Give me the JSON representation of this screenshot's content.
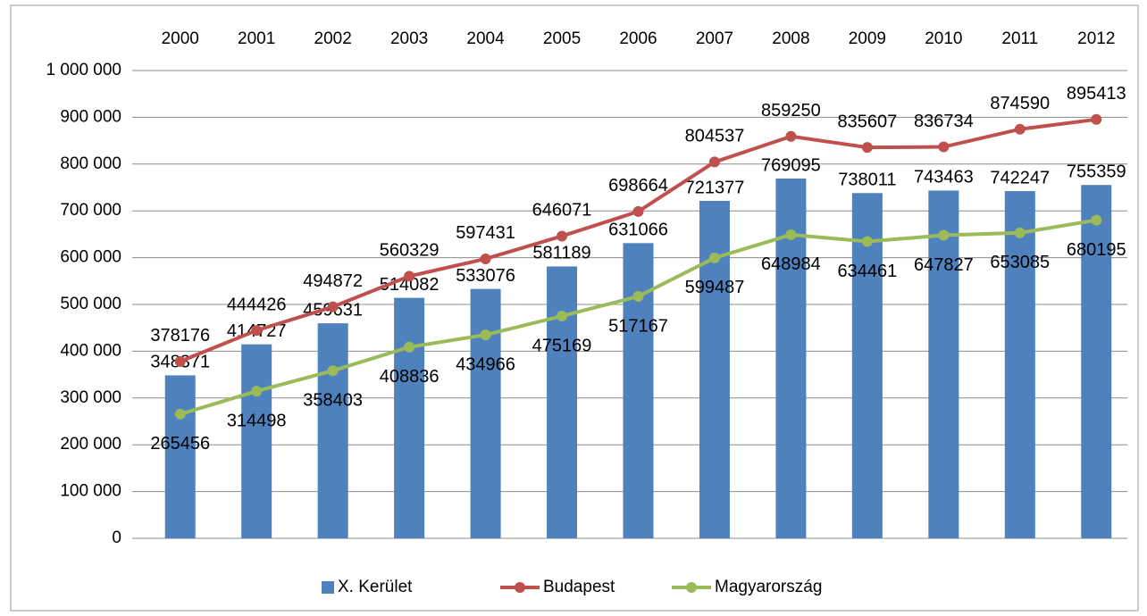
{
  "chart_data": {
    "type": "bar-line",
    "categories": [
      "2000",
      "2001",
      "2002",
      "2003",
      "2004",
      "2005",
      "2006",
      "2007",
      "2008",
      "2009",
      "2010",
      "2011",
      "2012"
    ],
    "series": [
      {
        "name": "X. Kerület",
        "type": "bar",
        "color": "#4f81bd",
        "values": [
          348371,
          414727,
          459631,
          514082,
          533076,
          581189,
          631066,
          721377,
          769095,
          738011,
          743463,
          742247,
          755359
        ]
      },
      {
        "name": "Budapest",
        "type": "line",
        "color": "#c0504d",
        "values": [
          378176,
          444426,
          494872,
          560329,
          597431,
          646071,
          698664,
          804537,
          859250,
          835607,
          836734,
          874590,
          895413
        ]
      },
      {
        "name": "Magyarország",
        "type": "line",
        "color": "#9bbb59",
        "values": [
          265456,
          314498,
          358403,
          408836,
          434966,
          475169,
          517167,
          599487,
          648984,
          634461,
          647827,
          653085,
          680195
        ]
      }
    ],
    "ylim": [
      0,
      1000000
    ],
    "yticks": [
      0,
      {
        "value": 100000,
        "label": "100 000"
      },
      {
        "value": 200000,
        "label": "200 000"
      },
      {
        "value": 300000,
        "label": "300 000"
      },
      {
        "value": 400000,
        "label": "400 000"
      },
      {
        "value": 500000,
        "label": "500 000"
      },
      {
        "value": 600000,
        "label": "600 000"
      },
      {
        "value": 700000,
        "label": "700 000"
      },
      {
        "value": 800000,
        "label": "800 000"
      },
      {
        "value": 900000,
        "label": "900 000"
      },
      {
        "value": 1000000,
        "label": "1 000 000"
      }
    ],
    "grid": true,
    "legend": "bottom"
  }
}
